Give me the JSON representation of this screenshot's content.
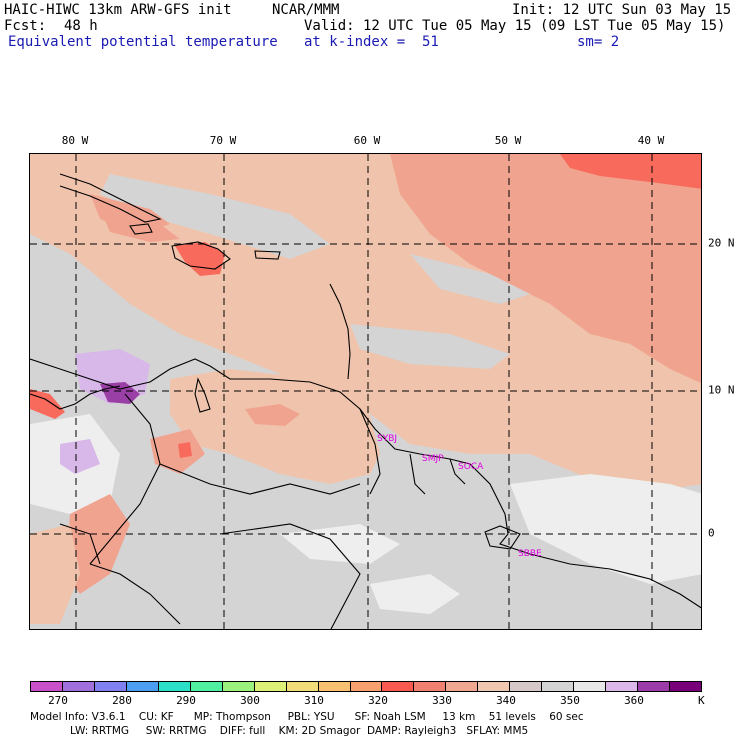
{
  "header": {
    "model": "HAIC-HIWC 13km ARW-GFS init",
    "center": "NCAR/MMM",
    "init": "Init: 12 UTC Sun 03 May 15",
    "fcst_label": "Fcst:",
    "fcst_value": "48 h",
    "valid": "Valid: 12 UTC Tue 05 May 15 (09 LST Tue 05 May 15)",
    "field": "Equivalent potential temperature",
    "level": "at k-index =  51",
    "smooth": "sm= 2"
  },
  "map": {
    "lon_labels": [
      "80 W",
      "70 W",
      "60 W",
      "50 W",
      "40 W"
    ],
    "lat_labels": [
      "20 N",
      "10 N",
      "0"
    ],
    "stations": [
      "SYBJ",
      "SMJP",
      "SOCA",
      "SBBE"
    ],
    "colors": {
      "gray": "#d4d4d4",
      "peach": "#f0c4ac",
      "salmon": "#f0a490",
      "red": "#f86a5c",
      "white": "#eeeeee",
      "lavender": "#d7b8e8",
      "purple": "#9a3fa6",
      "mauve": "#d6c8c8"
    }
  },
  "colorbar": {
    "ticks": [
      "270",
      "280",
      "290",
      "300",
      "310",
      "320",
      "330",
      "340",
      "350",
      "360"
    ],
    "unit": "K",
    "colors": [
      "#c850c8",
      "#a070dc",
      "#8080f0",
      "#4c9ef0",
      "#2ce0c8",
      "#50f0a0",
      "#9cf07c",
      "#dcf078",
      "#f0dc78",
      "#f8c070",
      "#f8a070",
      "#f85a50",
      "#f08070",
      "#f0a890",
      "#f0c8b0",
      "#d6c8c8",
      "#d4d4d4",
      "#e8e8e8",
      "#dcb8e8",
      "#9c3ca8",
      "#780078"
    ]
  },
  "footer": {
    "line1": "Model Info: V3.6.1    CU: KF      MP: Thompson     PBL: YSU      SF: Noah LSM     13 km    51 levels    60 sec",
    "line2": "            LW: RRTMG     SW: RRTMG    DIFF: full    KM: 2D Smagor  DAMP: Rayleigh3   SFLAY: MM5"
  }
}
